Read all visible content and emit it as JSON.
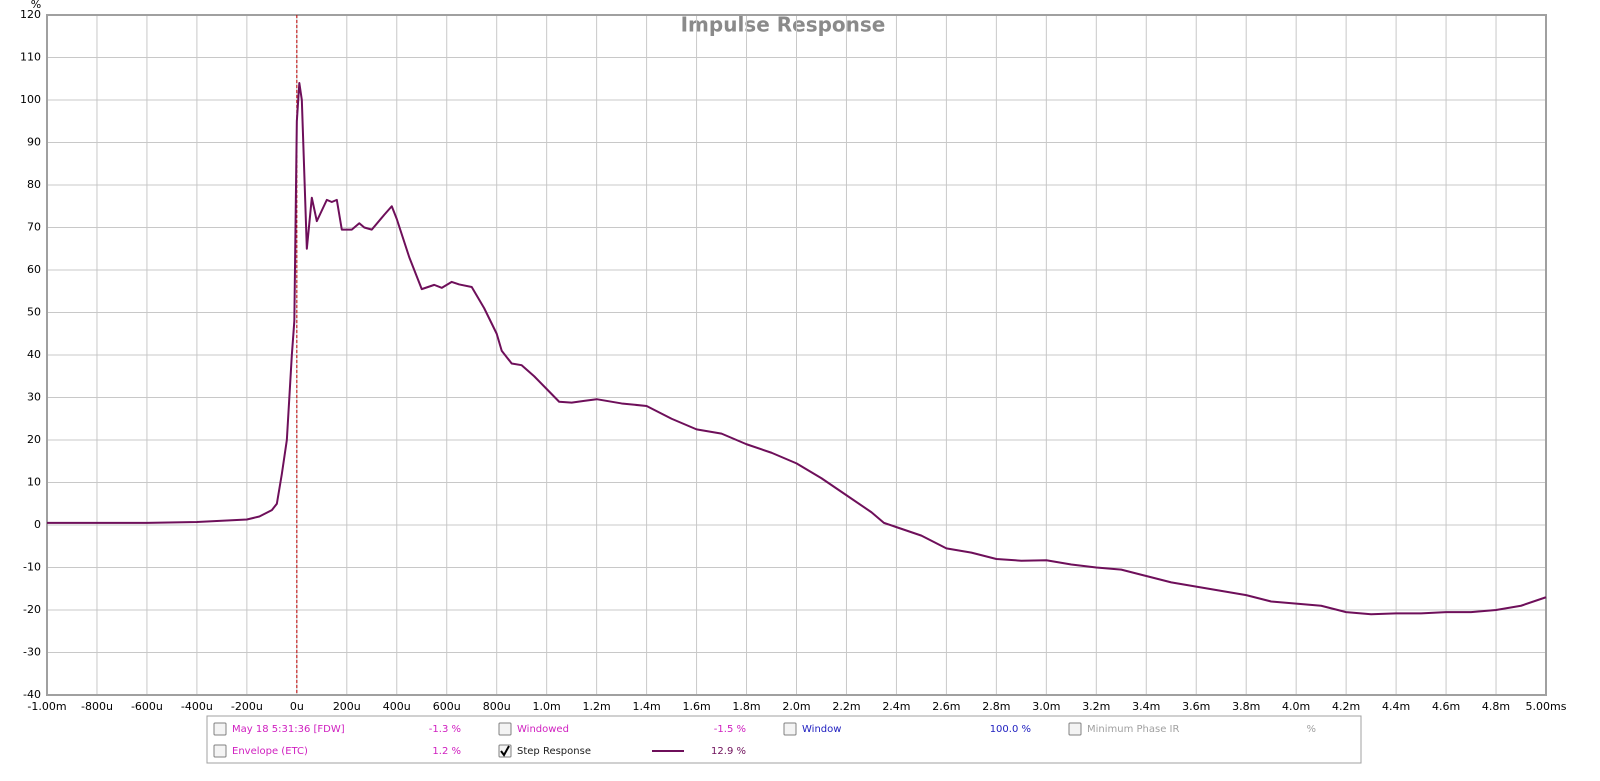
{
  "chart_data": {
    "type": "line",
    "title": "Impulse Response",
    "y_label": "%",
    "x": [
      -1.0,
      -0.6,
      -0.4,
      -0.2,
      -0.15,
      -0.1,
      -0.08,
      -0.06,
      -0.04,
      -0.02,
      -0.01,
      0,
      0.01,
      0.02,
      0.04,
      0.06,
      0.08,
      0.1,
      0.12,
      0.14,
      0.16,
      0.18,
      0.22,
      0.25,
      0.27,
      0.3,
      0.35,
      0.38,
      0.4,
      0.45,
      0.5,
      0.55,
      0.58,
      0.62,
      0.65,
      0.7,
      0.75,
      0.8,
      0.82,
      0.86,
      0.9,
      0.95,
      1.0,
      1.05,
      1.1,
      1.15,
      1.2,
      1.3,
      1.4,
      1.5,
      1.6,
      1.7,
      1.8,
      1.9,
      2.0,
      2.1,
      2.2,
      2.3,
      2.35,
      2.4,
      2.5,
      2.6,
      2.7,
      2.8,
      2.9,
      3.0,
      3.1,
      3.2,
      3.3,
      3.4,
      3.5,
      3.6,
      3.7,
      3.8,
      3.9,
      4.0,
      4.1,
      4.2,
      4.3,
      4.4,
      4.5,
      4.6,
      4.7,
      4.8,
      4.9,
      5.0
    ],
    "series": [
      {
        "name": "Step Response",
        "color": "#6e0f5a",
        "checked": true,
        "readout": "12.9 %",
        "values": [
          0.5,
          0.5,
          0.7,
          1.3,
          2,
          3.5,
          5,
          12,
          20,
          40,
          48,
          95,
          104,
          100,
          65,
          77,
          71.5,
          74,
          76.5,
          76,
          76.5,
          69.5,
          69.5,
          71,
          70,
          69.5,
          73,
          75,
          72,
          63,
          55.5,
          56.5,
          55.8,
          57.2,
          56.6,
          56,
          51,
          45,
          41,
          38,
          37.6,
          35,
          32,
          29,
          28.8,
          29.2,
          29.6,
          28.6,
          28,
          25,
          22.5,
          21.5,
          19,
          17,
          14.5,
          11,
          7,
          3,
          0.5,
          -0.5,
          -2.5,
          -5.5,
          -6.5,
          -8,
          -8.4,
          -8.3,
          -9.3,
          -10,
          -10.5,
          -12,
          -13.5,
          -14.5,
          -15.5,
          -16.5,
          -18,
          -18.5,
          -19,
          -20.5,
          -21,
          -20.8,
          -20.8,
          -20.5,
          -20.5,
          -20,
          -19,
          -17
        ]
      }
    ],
    "xlim": [
      -1.0,
      5.0
    ],
    "ylim": [
      -40,
      120
    ],
    "xticks": [
      {
        "value": -1.0,
        "label": "-1.00m"
      },
      {
        "value": -0.8,
        "label": "-800u"
      },
      {
        "value": -0.6,
        "label": "-600u"
      },
      {
        "value": -0.4,
        "label": "-400u"
      },
      {
        "value": -0.2,
        "label": "-200u"
      },
      {
        "value": 0,
        "label": "0u"
      },
      {
        "value": 0.2,
        "label": "200u"
      },
      {
        "value": 0.4,
        "label": "400u"
      },
      {
        "value": 0.6,
        "label": "600u"
      },
      {
        "value": 0.8,
        "label": "800u"
      },
      {
        "value": 1.0,
        "label": "1.0m"
      },
      {
        "value": 1.2,
        "label": "1.2m"
      },
      {
        "value": 1.4,
        "label": "1.4m"
      },
      {
        "value": 1.6,
        "label": "1.6m"
      },
      {
        "value": 1.8,
        "label": "1.8m"
      },
      {
        "value": 2.0,
        "label": "2.0m"
      },
      {
        "value": 2.2,
        "label": "2.2m"
      },
      {
        "value": 2.4,
        "label": "2.4m"
      },
      {
        "value": 2.6,
        "label": "2.6m"
      },
      {
        "value": 2.8,
        "label": "2.8m"
      },
      {
        "value": 3.0,
        "label": "3.0m"
      },
      {
        "value": 3.2,
        "label": "3.2m"
      },
      {
        "value": 3.4,
        "label": "3.4m"
      },
      {
        "value": 3.6,
        "label": "3.6m"
      },
      {
        "value": 3.8,
        "label": "3.8m"
      },
      {
        "value": 4.0,
        "label": "4.0m"
      },
      {
        "value": 4.2,
        "label": "4.2m"
      },
      {
        "value": 4.4,
        "label": "4.4m"
      },
      {
        "value": 4.6,
        "label": "4.6m"
      },
      {
        "value": 4.8,
        "label": "4.8m"
      },
      {
        "value": 5.0,
        "label": "5.00ms"
      }
    ],
    "yticks": [
      -40,
      -30,
      -20,
      -10,
      0,
      10,
      20,
      30,
      40,
      50,
      60,
      70,
      80,
      90,
      100,
      110,
      120
    ],
    "grid": true,
    "marker_x": 0,
    "marker_color": "#c00000",
    "legend_panel": [
      {
        "name": "May 18 5:31:36 [FDW]",
        "readout": "-1.3 %",
        "checked": false,
        "color": "#d020c0"
      },
      {
        "name": "Windowed",
        "readout": "-1.5 %",
        "checked": false,
        "color": "#d020c0"
      },
      {
        "name": "Window",
        "readout": "100.0 %",
        "checked": false,
        "color": "#2020c0"
      },
      {
        "name": "Minimum Phase IR",
        "readout": "%",
        "checked": false,
        "color": "#a0a0a0"
      },
      {
        "name": "Envelope (ETC)",
        "readout": "1.2 %",
        "checked": false,
        "color": "#d020c0"
      }
    ]
  }
}
